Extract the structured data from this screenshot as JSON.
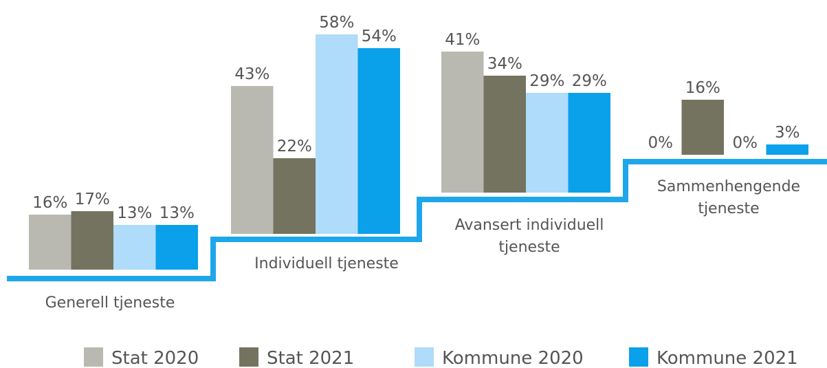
{
  "chart_data": {
    "type": "bar",
    "categories": [
      "Generell tjeneste",
      "Individuell tjeneste",
      "Avansert individuell tjeneste",
      "Sammenhengende tjeneste"
    ],
    "series": [
      {
        "name": "Stat 2020",
        "color": "#bab9b1",
        "values": [
          16,
          43,
          41,
          0
        ],
        "value_labels": [
          "16%",
          "43%",
          "41%",
          "0%"
        ]
      },
      {
        "name": "Stat 2021",
        "color": "#74735f",
        "values": [
          17,
          22,
          34,
          16
        ],
        "value_labels": [
          "17%",
          "22%",
          "34%",
          "16%"
        ]
      },
      {
        "name": "Kommune 2020",
        "color": "#aedcfa",
        "values": [
          13,
          58,
          29,
          0
        ],
        "value_labels": [
          "13%",
          "58%",
          "29%",
          "0%"
        ]
      },
      {
        "name": "Kommune 2021",
        "color": "#0aa0ea",
        "values": [
          13,
          54,
          29,
          3
        ],
        "value_labels": [
          "13%",
          "54%",
          "29%",
          "3%"
        ]
      }
    ],
    "ylim": [
      0,
      100
    ]
  }
}
